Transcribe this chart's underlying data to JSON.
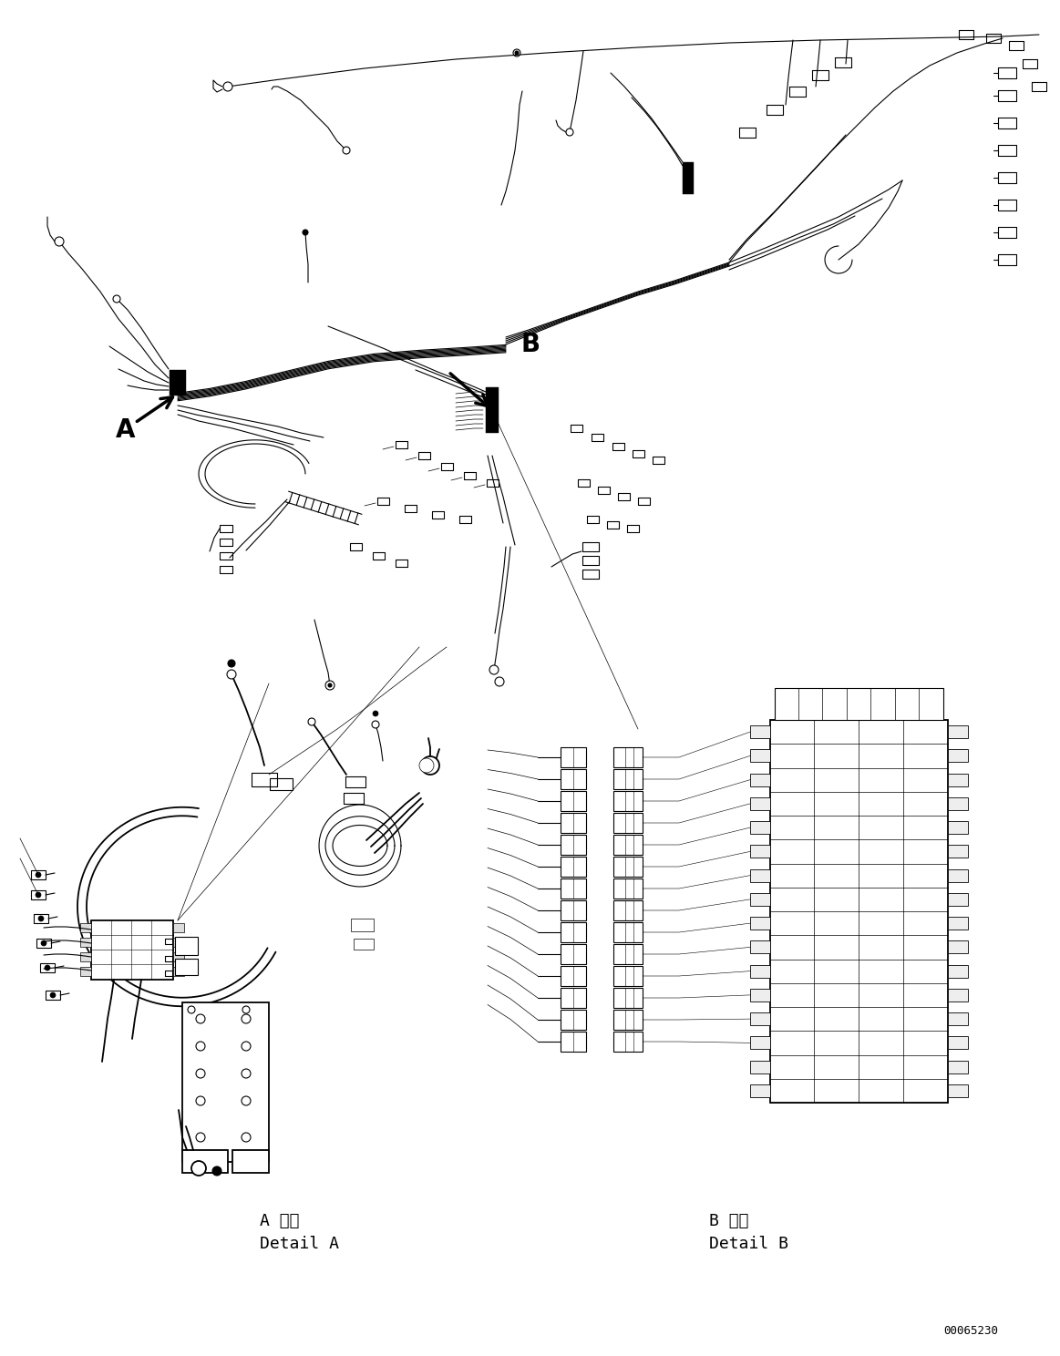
{
  "background_color": "#ffffff",
  "page_width": 11.63,
  "page_height": 14.88,
  "dpi": 100,
  "label_A": "A",
  "label_B": "B",
  "detail_A_japanese": "A 詳細",
  "detail_A_english": "Detail A",
  "detail_B_japanese": "B 詳細",
  "detail_B_english": "Detail B",
  "part_number": "00065230",
  "line_color": "#000000",
  "lw_main": 1.3,
  "lw_thin": 0.8,
  "lw_thick": 2.0
}
